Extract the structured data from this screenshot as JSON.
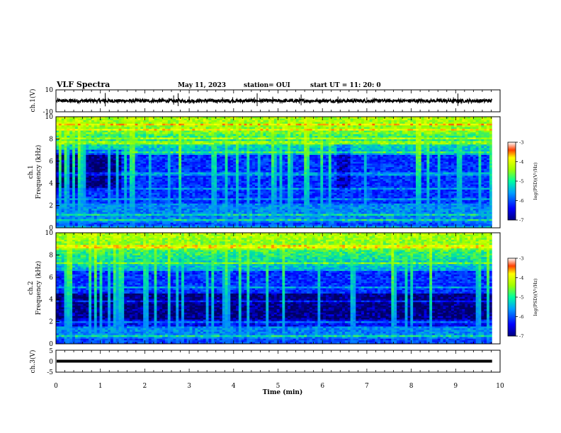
{
  "header": {
    "title": "VLF Spectra",
    "date": "May 11, 2023",
    "station": "station= OUI",
    "start": "start  UT =   11: 20: 0"
  },
  "colors": {
    "background": "#ffffff",
    "axis": "#000000",
    "trace": "#000000"
  },
  "chart_data": [
    {
      "type": "line",
      "name": "ch1-waveform",
      "ylabel": "ch.1(V)",
      "ylim": [
        -10,
        10
      ],
      "yticks": [
        "10",
        "-10"
      ],
      "xlim": [
        0,
        10
      ],
      "baseline": 0,
      "noise_amplitude": 1.5,
      "spikes_at_min": [
        1.11,
        2.65,
        2.75,
        3.0,
        3.75,
        3.98,
        4.47,
        4.53,
        4.88,
        5.52,
        6.35,
        7.0,
        8.95,
        9.05
      ]
    },
    {
      "type": "heatmap",
      "name": "ch1-spectrogram",
      "ylabel_top": "ch.1",
      "ylabel": "Frequency (kHz)",
      "ylim": [
        0,
        10
      ],
      "yticks": [
        "0",
        "2",
        "4",
        "6",
        "8",
        "10"
      ],
      "xlim": [
        0,
        10
      ],
      "colorbar": {
        "label": "log(PSD)(V²/Hz)",
        "range": [
          -7,
          -3
        ],
        "ticks": [
          "-3",
          "-4",
          "-5",
          "-6",
          "-7"
        ]
      },
      "features": {
        "dark_region_min": [
          0,
          1.5
        ],
        "dark_region_khz": [
          3.5,
          7.0
        ],
        "dark_patch_min": [
          6.3,
          6.6
        ],
        "low_band_khz": [
          0.5,
          2.0
        ]
      }
    },
    {
      "type": "heatmap",
      "name": "ch2-spectrogram",
      "ylabel_top": "ch.2",
      "ylabel": "Frequency (kHz)",
      "ylim": [
        0,
        10
      ],
      "yticks": [
        "0",
        "2",
        "4",
        "6",
        "8",
        "10"
      ],
      "xlim": [
        0,
        10
      ],
      "colorbar": {
        "label": "log(PSD)(V²/Hz)",
        "range": [
          -7,
          -3
        ],
        "ticks": [
          "-3",
          "-4",
          "-5",
          "-6",
          "-7"
        ]
      },
      "features": {
        "dark_region_min": [
          0,
          9.8
        ],
        "dark_region_khz": [
          1.5,
          4.5
        ],
        "low_band_khz": [
          0.5,
          2.0
        ]
      }
    },
    {
      "type": "line",
      "name": "ch3-waveform",
      "ylabel": "ch.3(V)",
      "ylim": [
        -5,
        5
      ],
      "yticks": [
        "5",
        "0",
        "-5"
      ],
      "xlim": [
        0,
        10
      ],
      "value": 0
    }
  ],
  "xaxis": {
    "label": "Time (min)",
    "ticks": [
      "0",
      "1",
      "2",
      "3",
      "4",
      "5",
      "6",
      "7",
      "8",
      "9",
      "10"
    ]
  }
}
